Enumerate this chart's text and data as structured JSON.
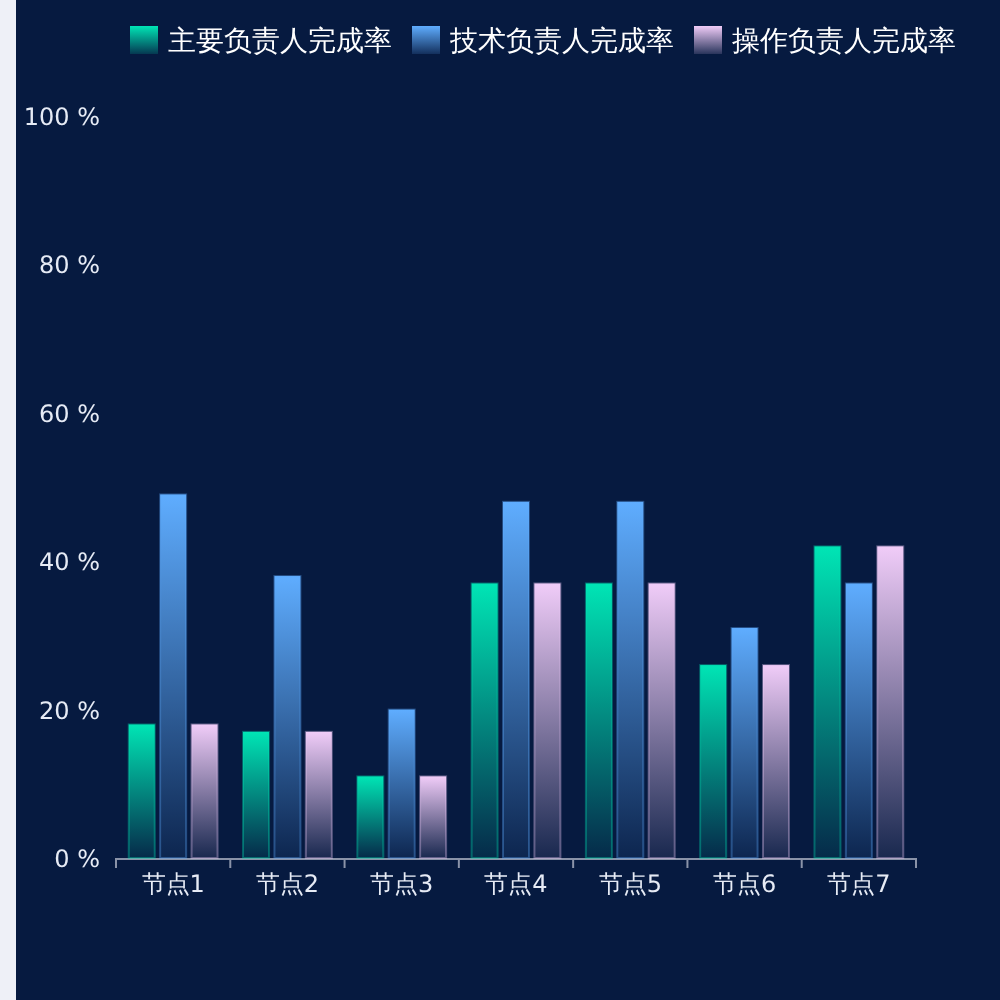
{
  "chart_data": {
    "type": "bar",
    "categories": [
      "节点1",
      "节点2",
      "节点3",
      "节点4",
      "节点5",
      "节点6",
      "节点7"
    ],
    "series": [
      {
        "name": "主要负责人完成率",
        "color": "#00e5b5",
        "values": [
          18,
          17,
          11,
          37,
          37,
          26,
          42
        ]
      },
      {
        "name": "技术负责人完成率",
        "color": "#5fadff",
        "values": [
          49,
          38,
          20,
          48,
          48,
          31,
          37
        ]
      },
      {
        "name": "操作负责人完成率",
        "color": "#f0ccf8",
        "values": [
          18,
          17,
          11,
          37,
          37,
          26,
          42
        ]
      }
    ],
    "ylim": [
      0,
      100
    ],
    "yticks": [
      {
        "value": 0,
        "label": "0 %"
      },
      {
        "value": 20,
        "label": "20 %"
      },
      {
        "value": 40,
        "label": "40 %"
      },
      {
        "value": 60,
        "label": "60 %"
      },
      {
        "value": 80,
        "label": "80 %"
      },
      {
        "value": 100,
        "label": "100 %"
      }
    ],
    "legend": "top right",
    "grid": false
  }
}
